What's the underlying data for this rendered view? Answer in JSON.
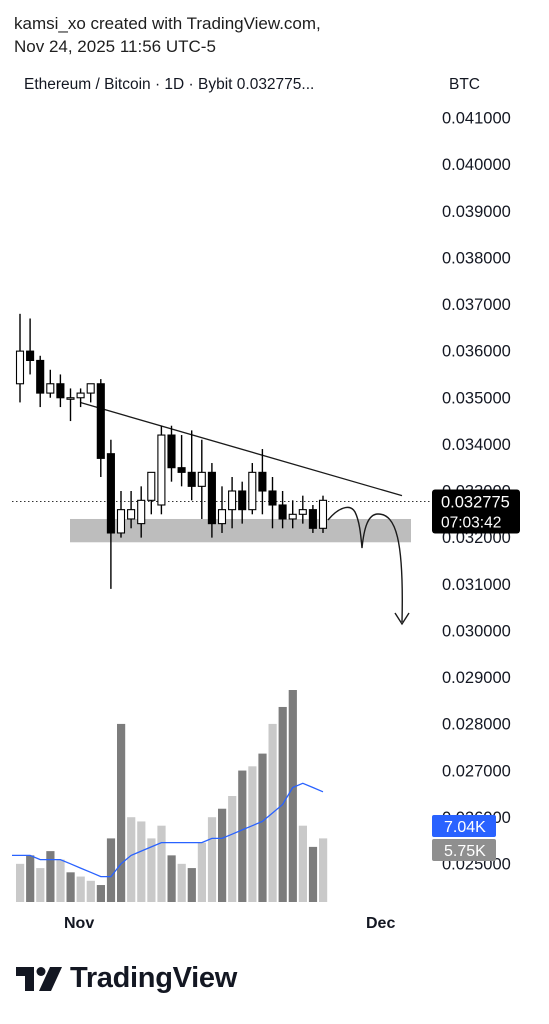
{
  "attribution": {
    "line1": "kamsi_xo created with TradingView.com,",
    "line2": "Nov 24, 2025 11:56 UTC-5"
  },
  "header": {
    "symbol": "Ethereum / Bitcoin · 1D · Bybit  0.032775...",
    "currency": "BTC"
  },
  "brand": {
    "name": "TradingView"
  },
  "colors": {
    "candle_up_fill": "#ffffff",
    "candle_down_fill": "#000000",
    "candle_border": "#000000",
    "support_zone": "#bdbdbd",
    "volume_ma": "#2962ff",
    "volume_badge": "#2962ff",
    "volume_badge2": "#8f8f8f",
    "price_badge": "#000000"
  },
  "chart_data": {
    "type": "candlestick",
    "symbol": "Ethereum / Bitcoin",
    "timeframe": "1D",
    "exchange": "Bybit",
    "price_axis": {
      "unit": "BTC",
      "ylim": [
        0.0248,
        0.042
      ],
      "ticks": [
        "0.041000",
        "0.040000",
        "0.039000",
        "0.038000",
        "0.037000",
        "0.036000",
        "0.035000",
        "0.034000",
        "0.033000",
        "0.032000",
        "0.031000",
        "0.030000",
        "0.029000",
        "0.028000",
        "0.027000",
        "0.026000",
        "0.025000"
      ]
    },
    "x_labels": [
      {
        "text": "Nov",
        "index": 9
      },
      {
        "text": "Dec",
        "index": 36
      }
    ],
    "last_price": {
      "value": "0.032775",
      "countdown": "07:03:42"
    },
    "candles": [
      {
        "o": 0.0353,
        "h": 0.0368,
        "l": 0.0349,
        "c": 0.036
      },
      {
        "o": 0.036,
        "h": 0.0367,
        "l": 0.0355,
        "c": 0.0358
      },
      {
        "o": 0.0358,
        "h": 0.0359,
        "l": 0.0348,
        "c": 0.0351
      },
      {
        "o": 0.0351,
        "h": 0.0356,
        "l": 0.035,
        "c": 0.0353
      },
      {
        "o": 0.0353,
        "h": 0.0355,
        "l": 0.0348,
        "c": 0.035
      },
      {
        "o": 0.035,
        "h": 0.0352,
        "l": 0.0345,
        "c": 0.035
      },
      {
        "o": 0.035,
        "h": 0.0352,
        "l": 0.0348,
        "c": 0.0351
      },
      {
        "o": 0.0351,
        "h": 0.0353,
        "l": 0.0349,
        "c": 0.0353
      },
      {
        "o": 0.0353,
        "h": 0.0354,
        "l": 0.0333,
        "c": 0.0337
      },
      {
        "o": 0.0338,
        "h": 0.0341,
        "l": 0.0309,
        "c": 0.0321
      },
      {
        "o": 0.0321,
        "h": 0.033,
        "l": 0.032,
        "c": 0.0326
      },
      {
        "o": 0.0324,
        "h": 0.033,
        "l": 0.0322,
        "c": 0.0326
      },
      {
        "o": 0.0323,
        "h": 0.0331,
        "l": 0.032,
        "c": 0.0328
      },
      {
        "o": 0.0328,
        "h": 0.0334,
        "l": 0.0325,
        "c": 0.0334
      },
      {
        "o": 0.0327,
        "h": 0.0344,
        "l": 0.0325,
        "c": 0.0342
      },
      {
        "o": 0.0342,
        "h": 0.0344,
        "l": 0.0332,
        "c": 0.0335
      },
      {
        "o": 0.0335,
        "h": 0.0342,
        "l": 0.0331,
        "c": 0.0334
      },
      {
        "o": 0.0334,
        "h": 0.0343,
        "l": 0.0328,
        "c": 0.0331
      },
      {
        "o": 0.0331,
        "h": 0.0341,
        "l": 0.0324,
        "c": 0.0334
      },
      {
        "o": 0.0334,
        "h": 0.0336,
        "l": 0.032,
        "c": 0.0323
      },
      {
        "o": 0.0323,
        "h": 0.0331,
        "l": 0.0321,
        "c": 0.0326
      },
      {
        "o": 0.0326,
        "h": 0.0333,
        "l": 0.0322,
        "c": 0.033
      },
      {
        "o": 0.033,
        "h": 0.0332,
        "l": 0.0323,
        "c": 0.0326
      },
      {
        "o": 0.0326,
        "h": 0.0336,
        "l": 0.0325,
        "c": 0.0334
      },
      {
        "o": 0.0334,
        "h": 0.0339,
        "l": 0.0325,
        "c": 0.033
      },
      {
        "o": 0.033,
        "h": 0.0333,
        "l": 0.0322,
        "c": 0.0327
      },
      {
        "o": 0.0327,
        "h": 0.033,
        "l": 0.0322,
        "c": 0.0324
      },
      {
        "o": 0.0324,
        "h": 0.0328,
        "l": 0.0322,
        "c": 0.0325
      },
      {
        "o": 0.0325,
        "h": 0.0329,
        "l": 0.0323,
        "c": 0.0326
      },
      {
        "o": 0.0326,
        "h": 0.0327,
        "l": 0.0321,
        "c": 0.0322
      },
      {
        "o": 0.0322,
        "h": 0.0329,
        "l": 0.0321,
        "c": 0.0328
      }
    ],
    "volume": {
      "values": [
        0.9,
        1.1,
        0.8,
        1.2,
        1.0,
        0.7,
        0.6,
        0.5,
        0.4,
        1.5,
        4.2,
        2.0,
        1.9,
        1.5,
        1.8,
        1.1,
        0.9,
        0.8,
        1.4,
        2.0,
        2.2,
        2.5,
        3.1,
        3.2,
        3.5,
        4.2,
        4.6,
        5.0,
        1.8,
        1.3,
        1.5
      ],
      "up": [
        true,
        false,
        true,
        false,
        true,
        false,
        true,
        true,
        false,
        false,
        false,
        true,
        true,
        true,
        true,
        false,
        true,
        false,
        true,
        true,
        false,
        true,
        false,
        true,
        false,
        true,
        false,
        false,
        true,
        false,
        true
      ],
      "ma": [
        1.1,
        1.1,
        1.0,
        1.0,
        1.0,
        0.9,
        0.8,
        0.7,
        0.6,
        0.6,
        0.9,
        1.1,
        1.2,
        1.3,
        1.4,
        1.4,
        1.4,
        1.4,
        1.4,
        1.5,
        1.5,
        1.6,
        1.7,
        1.8,
        1.9,
        2.1,
        2.3,
        2.7,
        2.8,
        2.7,
        2.6
      ],
      "last_ma_label": "7.04K",
      "last_volume_label": "5.75K"
    },
    "annotations": {
      "resistance_line": {
        "start_index": 6,
        "start_value": 0.0349,
        "end_index": 34,
        "end_value": 0.0329
      },
      "support_zone": {
        "start_index": 5,
        "end_index": 33,
        "low": 0.0319,
        "high": 0.0324
      },
      "projection_path": [
        {
          "i": 29.5,
          "v": 0.0323
        },
        {
          "i": 31.0,
          "v": 0.0326
        },
        {
          "i": 32.0,
          "v": 0.032
        },
        {
          "i": 33.0,
          "v": 0.0326
        },
        {
          "i": 34.2,
          "v": 0.0318
        },
        {
          "i": 34.5,
          "v": 0.03
        }
      ]
    }
  }
}
